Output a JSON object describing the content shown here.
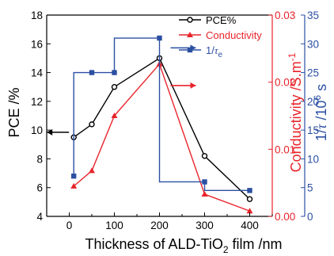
{
  "chart_data": {
    "type": "line",
    "x": [
      10,
      50,
      100,
      200,
      300,
      400
    ],
    "xlabel": {
      "pre": "Thickness of ALD-TiO",
      "sub": "2",
      "post": " film /nm"
    },
    "xlim": [
      -50,
      450
    ],
    "xticks": [
      "0",
      "100",
      "200",
      "300",
      "400"
    ],
    "y_left": {
      "label": "PCE /%",
      "lim": [
        4,
        18
      ],
      "ticks": [
        "4",
        "6",
        "8",
        "10",
        "12",
        "14",
        "16",
        "18"
      ],
      "color": "#000000"
    },
    "y_right1": {
      "label": "Conductivity /S.m",
      "label_sup": "-1",
      "lim": [
        0,
        0.03
      ],
      "ticks": [
        "0.00",
        "0.01",
        "0.02",
        "0.03"
      ],
      "color": "#e8242b"
    },
    "y_right2": {
      "label_pre": "1/",
      "label_tau": "τ",
      "label_mid": " /10",
      "label_sup": "6",
      "label_post": " s",
      "lim": [
        0,
        35
      ],
      "ticks": [
        "0",
        "5",
        "10",
        "15",
        "20",
        "25",
        "30",
        "35"
      ],
      "color": "#2b4fa3"
    },
    "series": [
      {
        "name": "PCE%",
        "axis": "left",
        "color": "#000000",
        "marker": "circle",
        "shape": "line",
        "values": [
          9.5,
          10.4,
          13.0,
          15.0,
          8.2,
          5.2
        ]
      },
      {
        "name": "Conductivity",
        "axis": "right1",
        "color": "#e8242b",
        "marker": "triangle",
        "shape": "line",
        "values": [
          0.0045,
          0.0068,
          0.015,
          0.0227,
          0.0033,
          0.0008
        ]
      },
      {
        "name_pre": "1/",
        "name_tau": "τ",
        "name_sub": "e",
        "axis": "right2",
        "color": "#2b4fa3",
        "marker": "square",
        "shape": "step",
        "values": [
          7,
          25,
          25,
          31,
          6,
          4.5
        ]
      }
    ],
    "legend_position": "top-right",
    "grid": false
  }
}
